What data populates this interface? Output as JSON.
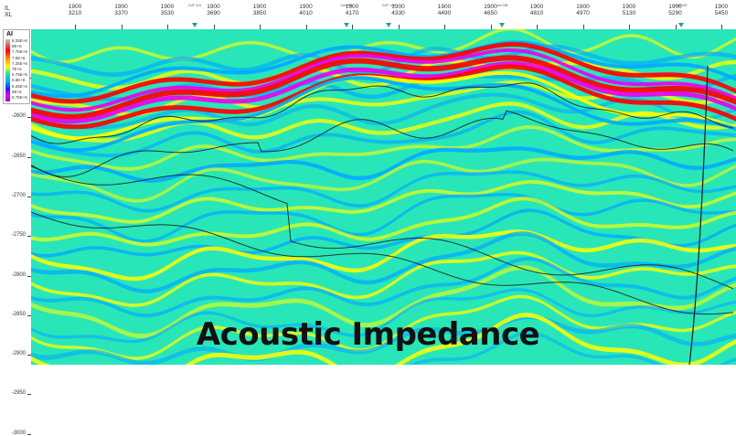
{
  "header": {
    "il_label": "IL",
    "xl_label": "XL",
    "ticks": [
      {
        "il": "1900",
        "xl": "3210"
      },
      {
        "il": "1900",
        "xl": "3370"
      },
      {
        "il": "1900",
        "xl": "3530"
      },
      {
        "il": "1900",
        "xl": "3690"
      },
      {
        "il": "1900",
        "xl": "3850"
      },
      {
        "il": "1900",
        "xl": "4010"
      },
      {
        "il": "1900",
        "xl": "4170"
      },
      {
        "il": "1900",
        "xl": "4330"
      },
      {
        "il": "1900",
        "xl": "4490"
      },
      {
        "il": "1900",
        "xl": "4650"
      },
      {
        "il": "1900",
        "xl": "4810"
      },
      {
        "il": "1900",
        "xl": "4970"
      },
      {
        "il": "1900",
        "xl": "5130"
      },
      {
        "il": "1900",
        "xl": "5290"
      },
      {
        "il": "1900",
        "xl": "5450"
      }
    ],
    "wells": [
      "GUF 314",
      "Use 555",
      "GUF 123",
      "Use 258",
      "Use 339"
    ]
  },
  "depth_axis": {
    "labels": [
      "-2550",
      "-2600",
      "-2650",
      "-2700",
      "-2750",
      "-2800",
      "-2850",
      "-2900",
      "-2950",
      "-3000"
    ]
  },
  "legend": {
    "title": "AI",
    "values": [
      "8.25E+6",
      "8E+6",
      "7.75E+6",
      "7.5E+6",
      "7.25E+6",
      "7E+6",
      "6.75E+6",
      "6.5E+6",
      "6.25E+6",
      "6E+6",
      "5.75E+6"
    ]
  },
  "colors": {
    "background": "#29e6b8",
    "high": "#ff0000",
    "mid_high": "#ffff00",
    "mid_low": "#00aaff",
    "low": "#ee00ee",
    "horizon": "#1a1a1a"
  },
  "caption": "Acoustic Impedance"
}
